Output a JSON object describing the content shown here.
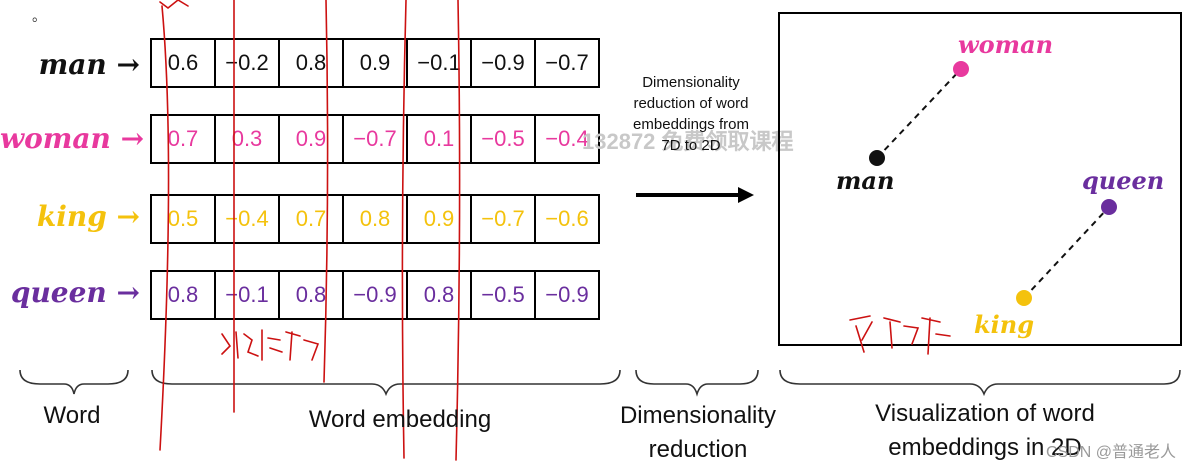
{
  "colors": {
    "man": "#111111",
    "woman": "#e8399e",
    "king": "#f4c20d",
    "queen": "#6a2e9e",
    "ink": "#cc1111"
  },
  "top_mark": "。",
  "rows": [
    {
      "word": "man →",
      "color": "man",
      "values": [
        "0.6",
        "−0.2",
        "0.8",
        "0.9",
        "−0.1",
        "−0.9",
        "−0.7"
      ]
    },
    {
      "word": "woman →",
      "color": "woman",
      "values": [
        "0.7",
        "0.3",
        "0.9",
        "−0.7",
        "0.1",
        "−0.5",
        "−0.4"
      ]
    },
    {
      "word": "king →",
      "color": "king",
      "values": [
        "0.5",
        "−0.4",
        "0.7",
        "0.8",
        "0.9",
        "−0.7",
        "−0.6"
      ]
    },
    {
      "word": "queen →",
      "color": "queen",
      "values": [
        "0.8",
        "−0.1",
        "0.8",
        "−0.9",
        "0.8",
        "−0.5",
        "−0.9"
      ]
    }
  ],
  "reduction_note": "Dimensionality reduction of word embeddings from 7D to 2D",
  "plot_points": {
    "woman": "woman",
    "man": "man",
    "queen": "queen",
    "king": "king"
  },
  "captions": {
    "word": "Word",
    "embedding": "Word embedding",
    "reduction_line1": "Dimensionality",
    "reduction_line2": "reduction",
    "visualization_line1": "Visualization of word",
    "visualization_line2": "embeddings in 2D"
  },
  "watermark": "132872 免费领取课程",
  "footer_mark": "CSDN @普通老人",
  "handwriting": {
    "under_embedding": "维度",
    "under_plot": "平移"
  }
}
